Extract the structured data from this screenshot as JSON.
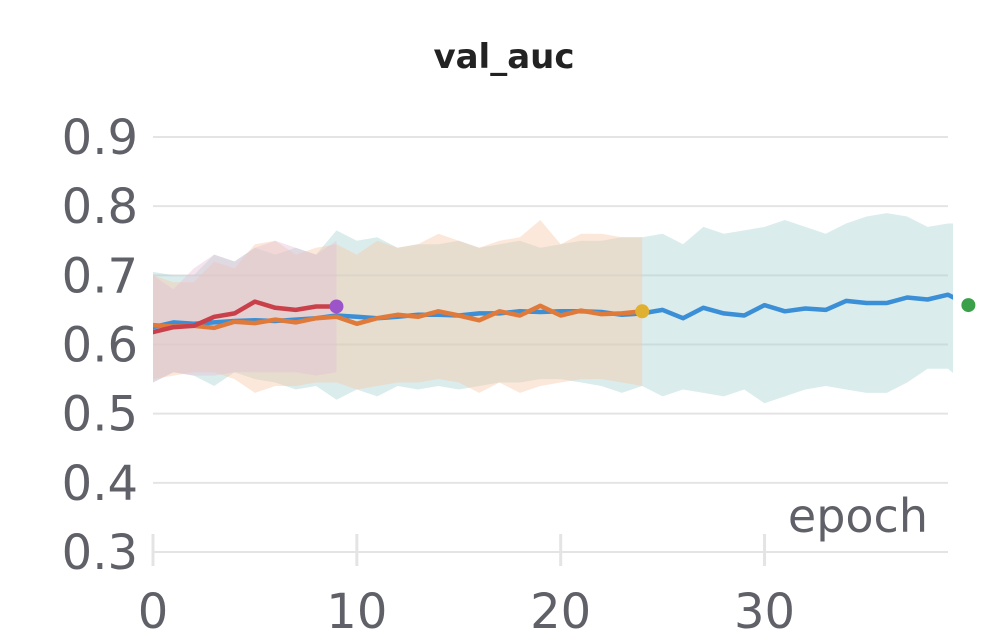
{
  "chart_data": {
    "type": "line",
    "title": "val_auc",
    "xlabel": "epoch",
    "ylabel": "",
    "xlim": [
      0,
      39
    ],
    "ylim": [
      0.3,
      0.9
    ],
    "x_ticks": [
      "0",
      "10",
      "20",
      "30"
    ],
    "y_ticks": [
      "0.3",
      "0.4",
      "0.5",
      "0.6",
      "0.7",
      "0.8",
      "0.9"
    ],
    "grid": true,
    "legend": "none",
    "series": [
      {
        "color": "#3a8fd6",
        "band_color": "#a9d2d3",
        "marker_color": "#3aa14a",
        "values": [
          0.625,
          0.632,
          0.63,
          0.632,
          0.634,
          0.635,
          0.634,
          0.636,
          0.638,
          0.642,
          0.64,
          0.638,
          0.64,
          0.643,
          0.643,
          0.642,
          0.645,
          0.645,
          0.648,
          0.647,
          0.648,
          0.648,
          0.647,
          0.643,
          0.645,
          0.65,
          0.638,
          0.653,
          0.645,
          0.642,
          0.657,
          0.648,
          0.652,
          0.65,
          0.663,
          0.66,
          0.66,
          0.668,
          0.665,
          0.672,
          0.657
        ],
        "upper": [
          0.705,
          0.7,
          0.7,
          0.73,
          0.72,
          0.74,
          0.73,
          0.74,
          0.73,
          0.765,
          0.75,
          0.755,
          0.74,
          0.745,
          0.745,
          0.75,
          0.74,
          0.745,
          0.75,
          0.74,
          0.745,
          0.75,
          0.75,
          0.755,
          0.755,
          0.76,
          0.745,
          0.77,
          0.76,
          0.765,
          0.77,
          0.78,
          0.77,
          0.76,
          0.775,
          0.785,
          0.79,
          0.785,
          0.77,
          0.775,
          0.775
        ],
        "lower": [
          0.545,
          0.56,
          0.555,
          0.54,
          0.56,
          0.55,
          0.545,
          0.535,
          0.54,
          0.52,
          0.535,
          0.525,
          0.54,
          0.535,
          0.54,
          0.535,
          0.54,
          0.545,
          0.545,
          0.55,
          0.55,
          0.545,
          0.54,
          0.53,
          0.54,
          0.525,
          0.535,
          0.53,
          0.525,
          0.535,
          0.515,
          0.525,
          0.535,
          0.54,
          0.535,
          0.53,
          0.53,
          0.545,
          0.565,
          0.565,
          0.54
        ]
      },
      {
        "color": "#e07a3a",
        "band_color": "#f6c9a6",
        "marker_color": "#e0b030",
        "values": [
          0.628,
          0.626,
          0.627,
          0.624,
          0.633,
          0.631,
          0.636,
          0.632,
          0.638,
          0.64,
          0.63,
          0.638,
          0.643,
          0.64,
          0.648,
          0.642,
          0.635,
          0.648,
          0.642,
          0.656,
          0.642,
          0.649,
          0.644,
          0.645,
          0.648
        ],
        "upper": [
          0.7,
          0.69,
          0.69,
          0.72,
          0.71,
          0.745,
          0.75,
          0.73,
          0.74,
          0.745,
          0.73,
          0.75,
          0.74,
          0.745,
          0.76,
          0.75,
          0.74,
          0.75,
          0.755,
          0.78,
          0.745,
          0.76,
          0.76,
          0.755,
          0.755
        ],
        "lower": [
          0.55,
          0.555,
          0.56,
          0.56,
          0.55,
          0.53,
          0.54,
          0.54,
          0.545,
          0.545,
          0.535,
          0.54,
          0.545,
          0.545,
          0.55,
          0.545,
          0.53,
          0.545,
          0.53,
          0.54,
          0.545,
          0.55,
          0.55,
          0.545,
          0.54
        ]
      },
      {
        "color": "#c9404a",
        "band_color": "#e4bfd4",
        "marker_color": "#9b55c8",
        "values": [
          0.618,
          0.625,
          0.627,
          0.64,
          0.645,
          0.662,
          0.653,
          0.65,
          0.655,
          0.655
        ],
        "upper": [
          0.7,
          0.68,
          0.71,
          0.73,
          0.72,
          0.74,
          0.75,
          0.74,
          0.73,
          0.75
        ],
        "lower": [
          0.545,
          0.56,
          0.555,
          0.555,
          0.56,
          0.56,
          0.56,
          0.56,
          0.555,
          0.56
        ]
      }
    ]
  }
}
